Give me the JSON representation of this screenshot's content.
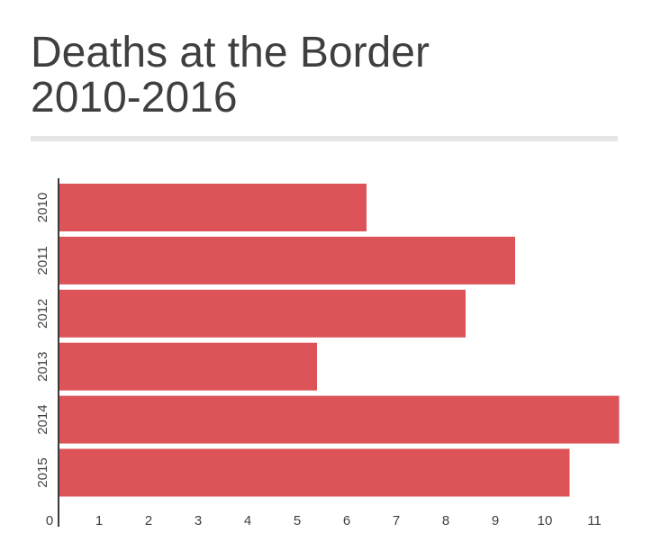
{
  "title_lines": [
    "Deaths at the Border",
    "2010-2016"
  ],
  "colors": {
    "bar": "#dc5458",
    "axis": "#3a3a3a",
    "text": "#3f3f3f",
    "divider": "#e6e6e6"
  },
  "chart_data": {
    "type": "bar",
    "orientation": "horizontal",
    "title": "Deaths at the Border 2010-2016",
    "categories": [
      "2010",
      "2011",
      "2012",
      "2013",
      "2014",
      "2015"
    ],
    "values": [
      6.2,
      9.2,
      8.2,
      5.2,
      11.3,
      10.3
    ],
    "xlim": [
      0,
      11.35
    ],
    "xticks": [
      0,
      1,
      2,
      3,
      4,
      5,
      6,
      7,
      8,
      9,
      10,
      11
    ],
    "xlabel": "",
    "ylabel": "",
    "grid": false,
    "legend": "none"
  }
}
